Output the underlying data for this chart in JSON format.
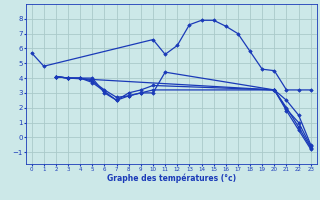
{
  "xlabel": "Graphe des températures (°c)",
  "bg_color": "#cce8e8",
  "line_color": "#1a3ab8",
  "grid_color": "#aacaca",
  "xlim": [
    -0.5,
    23.5
  ],
  "ylim": [
    -1.8,
    9.0
  ],
  "xticks": [
    0,
    1,
    2,
    3,
    4,
    5,
    6,
    7,
    8,
    9,
    10,
    11,
    12,
    13,
    14,
    15,
    16,
    17,
    18,
    19,
    20,
    21,
    22,
    23
  ],
  "yticks": [
    -1,
    0,
    1,
    2,
    3,
    4,
    5,
    6,
    7,
    8
  ],
  "series": [
    {
      "x": [
        0,
        1,
        10,
        11,
        12,
        13,
        14,
        15,
        16,
        17,
        18,
        19,
        20,
        21,
        22,
        23
      ],
      "y": [
        5.7,
        4.8,
        6.6,
        5.6,
        6.2,
        7.6,
        7.9,
        7.9,
        7.5,
        7.0,
        5.8,
        4.6,
        4.5,
        3.2,
        3.2,
        3.2
      ]
    },
    {
      "x": [
        2,
        3,
        4,
        5,
        6,
        7,
        8,
        9,
        10,
        11,
        20,
        21,
        22,
        23
      ],
      "y": [
        4.1,
        4.0,
        4.0,
        4.0,
        3.0,
        2.5,
        2.8,
        3.0,
        3.0,
        4.4,
        3.2,
        1.9,
        1.0,
        -0.6
      ]
    },
    {
      "x": [
        2,
        3,
        4,
        5,
        6,
        7,
        8,
        9,
        10,
        20,
        21,
        22,
        23
      ],
      "y": [
        4.1,
        4.0,
        4.0,
        3.8,
        3.2,
        2.7,
        2.8,
        3.0,
        3.2,
        3.2,
        2.5,
        1.5,
        -0.5
      ]
    },
    {
      "x": [
        2,
        3,
        4,
        5,
        6,
        7,
        8,
        9,
        10,
        20,
        21,
        22,
        23
      ],
      "y": [
        4.1,
        4.0,
        4.0,
        3.7,
        3.1,
        2.5,
        3.0,
        3.2,
        3.5,
        3.2,
        2.0,
        0.7,
        -0.7
      ]
    },
    {
      "x": [
        2,
        3,
        20,
        21,
        22,
        23
      ],
      "y": [
        4.1,
        4.0,
        3.2,
        1.8,
        0.5,
        -0.8
      ]
    }
  ]
}
